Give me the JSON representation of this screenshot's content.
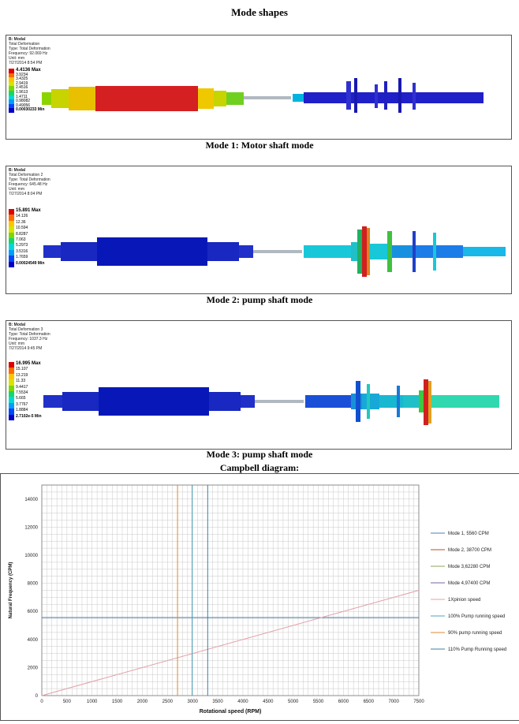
{
  "page_title": "Mode shapes",
  "modes": [
    {
      "caption": "Mode 1: Motor shaft mode",
      "header": [
        "B: Modal",
        "Total Deformation",
        "Type: Total Deformation",
        "Frequency: 92.069 Hz",
        "Unit: mm",
        "7/27/2014 8:54 PM"
      ],
      "scale": [
        "4.4136 Max",
        "3.9234",
        "3.4325",
        "2.9419",
        "2.4516",
        "1.9613",
        "1.4711",
        "0.98082",
        "0.49056",
        "0.00030233 Min"
      ]
    },
    {
      "caption": "Mode 2: pump shaft mode",
      "header": [
        "B: Modal",
        "Total Deformation 2",
        "Type: Total Deformation",
        "Frequency: 645.48 Hz",
        "Unit: mm",
        "7/27/2014 8:04 PM"
      ],
      "scale": [
        "15.891 Max",
        "14.126",
        "12.36",
        "10.594",
        "8.8287",
        "7.063",
        "5.2973",
        "3.5316",
        "1.7659",
        "0.00024549 Min"
      ]
    },
    {
      "caption": "Mode 3: pump shaft mode",
      "header": [
        "B: Modal",
        "Total Deformation 3",
        "Type: Total Deformation",
        "Frequency: 1037.3 Hz",
        "Unit: mm",
        "7/27/2014 9:45 PM"
      ],
      "scale": [
        "16.995 Max",
        "15.107",
        "13.219",
        "11.33",
        "9.4417",
        "7.5534",
        "5.665",
        "3.7767",
        "1.8884",
        "2.7102e-5 Min"
      ]
    }
  ],
  "scale_colors": [
    "#e00000",
    "#ff6a00",
    "#ffc400",
    "#d8e400",
    "#7bd800",
    "#12d86a",
    "#00d8d8",
    "#009cff",
    "#0046ff",
    "#0000c8"
  ],
  "campbell_title": "Campbell diagram:",
  "chart_data": {
    "type": "line",
    "xlabel": "Rotational  speed  (RPM)",
    "ylabel": "Natural Frequency (CPM)",
    "xlim": [
      0,
      7500
    ],
    "ylim": [
      0,
      15000
    ],
    "x_ticks": [
      0,
      500,
      1000,
      1500,
      2000,
      2500,
      3000,
      3500,
      4000,
      4500,
      5000,
      5500,
      6000,
      6500,
      7000,
      7500
    ],
    "y_ticks": [
      0,
      2000,
      4000,
      6000,
      8000,
      10000,
      12000,
      14000
    ],
    "grid": true,
    "legend_position": "right",
    "series": [
      {
        "name": "Mode 1, 5560 CPM",
        "kind": "hline",
        "value": 5560,
        "color": "#4a7fb5"
      },
      {
        "name": "Mode 2, 38700 CPM",
        "kind": "hline",
        "value": 38700,
        "color": "#b3502e"
      },
      {
        "name": "Mode 3,62280 CPM",
        "kind": "hline",
        "value": 62280,
        "color": "#8fa05a"
      },
      {
        "name": "Mode 4,97400 CPM",
        "kind": "hline",
        "value": 97400,
        "color": "#7a63a0"
      },
      {
        "name": "1Xpinion speed",
        "kind": "line",
        "x": [
          0,
          7500
        ],
        "y": [
          0,
          7500
        ],
        "color": "#e0a0a8"
      },
      {
        "name": "100% Pump running speed",
        "kind": "vline",
        "value": 2990,
        "color": "#4aa5c0"
      },
      {
        "name": "90% pump running speed",
        "kind": "vline",
        "value": 2700,
        "color": "#e08a30"
      },
      {
        "name": "110% Pump Running speed",
        "kind": "vline",
        "value": 3300,
        "color": "#3a7faa"
      }
    ]
  }
}
